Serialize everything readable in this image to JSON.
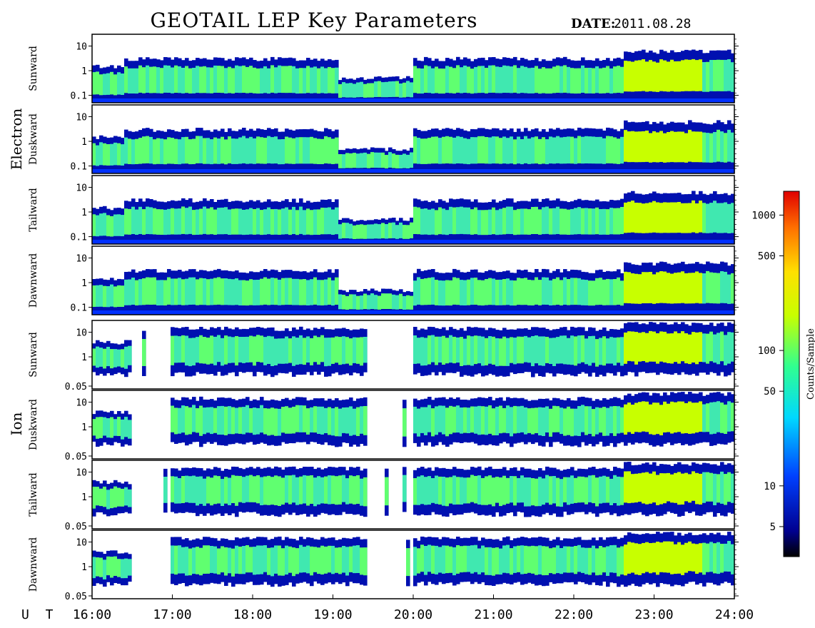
{
  "title": "GEOTAIL LEP Key Parameters",
  "date_label": "DATE:",
  "date_value": "2011.08.28",
  "time_axis": {
    "unit_label": "U T",
    "range": [
      16,
      24
    ],
    "ticks": [
      "16:00",
      "17:00",
      "18:00",
      "19:00",
      "20:00",
      "21:00",
      "22:00",
      "23:00",
      "24:00"
    ]
  },
  "groups": [
    {
      "name": "Electron",
      "panels": [
        "Sunward",
        "Duskward",
        "Tailward",
        "Dawnward"
      ]
    },
    {
      "name": "Ion",
      "panels": [
        "Sunward",
        "Duskward",
        "Tailward",
        "Dawnward"
      ]
    }
  ],
  "colorbar": {
    "label": "Counts/Sample",
    "scale": "log",
    "range": [
      3,
      1500
    ],
    "ticks": [
      "1000",
      "500",
      "100",
      "50",
      "10",
      "5"
    ]
  },
  "chart_data": {
    "type": "heatmap",
    "title": "GEOTAIL LEP Key Parameters",
    "date": "2011.08.28",
    "x_range_hours_ut": [
      16,
      24
    ],
    "electron_panels": {
      "y_scale": "log",
      "y_ticks": [
        "10",
        "1",
        "0.1"
      ],
      "y_ticks_values": [
        10,
        1,
        0.1
      ],
      "y_range": [
        0.05,
        30
      ]
    },
    "ion_panels": {
      "y_scale": "log",
      "y_ticks": [
        "10",
        "1",
        "0.05"
      ],
      "y_ticks_values": [
        10,
        1,
        0.05
      ],
      "y_range": [
        0.05,
        30
      ]
    },
    "colorbar_ticks": [
      1000,
      500,
      100,
      50,
      10,
      5
    ],
    "colorbar_range": [
      3,
      1500
    ]
  }
}
